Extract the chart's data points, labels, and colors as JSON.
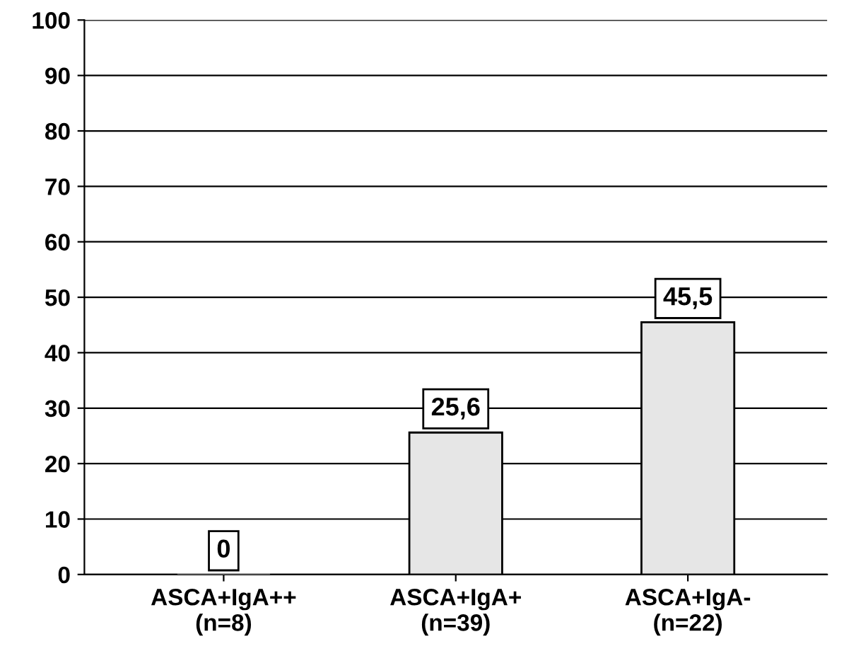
{
  "chart_data": {
    "type": "bar",
    "categories": [
      "ASCA+IgA++\n(n=8)",
      "ASCA+IgA+\n(n=39)",
      "ASCA+IgA-\n(n=22)"
    ],
    "values": [
      0,
      25.6,
      45.5
    ],
    "value_labels": [
      "0",
      "25,6",
      "45,5"
    ],
    "colors": [
      "#a6a6a6",
      "#e6e6e6",
      "#e6e6e6"
    ],
    "ylim": [
      0,
      100
    ],
    "yticks": [
      0,
      10,
      20,
      30,
      40,
      50,
      60,
      70,
      80,
      90,
      100
    ],
    "grid": "y"
  }
}
